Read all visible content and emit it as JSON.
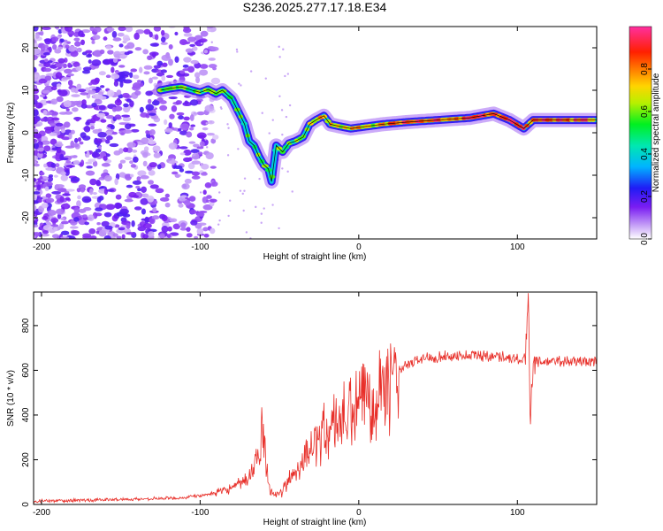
{
  "title": "S236.2025.277.17.18.E34",
  "chart_data": [
    {
      "type": "heatmap",
      "name": "spectrogram",
      "xlabel": "Height of straight line (km)",
      "ylabel": "Frequency (Hz)",
      "xlim": [
        -205,
        150
      ],
      "ylim": [
        -25,
        25
      ],
      "xticks": [
        -200,
        -100,
        0,
        100
      ],
      "yticks": [
        -20,
        -10,
        0,
        10,
        20
      ],
      "colorbar": {
        "label": "Normalized spectral amplitude",
        "range": [
          0,
          1
        ],
        "ticks": [
          0.0,
          0.2,
          0.4,
          0.6,
          0.8
        ]
      },
      "ridge": [
        {
          "x": -125,
          "y": 10.0
        },
        {
          "x": -118,
          "y": 10.5
        },
        {
          "x": -112,
          "y": 10.8
        },
        {
          "x": -105,
          "y": 10.0
        },
        {
          "x": -100,
          "y": 9.5
        },
        {
          "x": -95,
          "y": 10.2
        },
        {
          "x": -90,
          "y": 9.2
        },
        {
          "x": -86,
          "y": 10.0
        },
        {
          "x": -80,
          "y": 8.0
        },
        {
          "x": -76,
          "y": 5.0
        },
        {
          "x": -72,
          "y": 2.0
        },
        {
          "x": -69,
          "y": -2.0
        },
        {
          "x": -66,
          "y": -3.0
        },
        {
          "x": -63,
          "y": -5.5
        },
        {
          "x": -60,
          "y": -7.5
        },
        {
          "x": -57,
          "y": -8.5
        },
        {
          "x": -55,
          "y": -11.5
        },
        {
          "x": -52,
          "y": -3.0
        },
        {
          "x": -48,
          "y": -4.5
        },
        {
          "x": -44,
          "y": -2.5
        },
        {
          "x": -40,
          "y": -2.0
        },
        {
          "x": -35,
          "y": -1.0
        },
        {
          "x": -31,
          "y": 2.0
        },
        {
          "x": -27,
          "y": 3.0
        },
        {
          "x": -22,
          "y": 4.0
        },
        {
          "x": -18,
          "y": 2.0
        },
        {
          "x": -12,
          "y": 1.5
        },
        {
          "x": -5,
          "y": 1.0
        },
        {
          "x": 5,
          "y": 1.5
        },
        {
          "x": 15,
          "y": 2.0
        },
        {
          "x": 30,
          "y": 2.5
        },
        {
          "x": 50,
          "y": 3.0
        },
        {
          "x": 70,
          "y": 3.5
        },
        {
          "x": 85,
          "y": 4.5
        },
        {
          "x": 95,
          "y": 3.0
        },
        {
          "x": 104,
          "y": 1.0
        },
        {
          "x": 110,
          "y": 3.0
        },
        {
          "x": 130,
          "y": 3.0
        },
        {
          "x": 150,
          "y": 3.0
        }
      ]
    },
    {
      "type": "line",
      "name": "snr",
      "xlabel": "Height of straight line (km)",
      "ylabel": "SNR (10 * v/v)",
      "xlim": [
        -205,
        150
      ],
      "ylim": [
        0,
        950
      ],
      "xticks": [
        -200,
        -100,
        0,
        100
      ],
      "yticks": [
        0,
        200,
        400,
        600,
        800
      ],
      "color": "#e8302a",
      "series": [
        {
          "x": -205,
          "y": 15
        },
        {
          "x": -150,
          "y": 22
        },
        {
          "x": -110,
          "y": 30
        },
        {
          "x": -95,
          "y": 45
        },
        {
          "x": -85,
          "y": 60
        },
        {
          "x": -78,
          "y": 80
        },
        {
          "x": -70,
          "y": 110
        },
        {
          "x": -65,
          "y": 180
        },
        {
          "x": -62,
          "y": 260
        },
        {
          "x": -61,
          "y": 430
        },
        {
          "x": -59,
          "y": 220
        },
        {
          "x": -56,
          "y": 60
        },
        {
          "x": -50,
          "y": 40
        },
        {
          "x": -40,
          "y": 150
        },
        {
          "x": -30,
          "y": 260
        },
        {
          "x": -20,
          "y": 330
        },
        {
          "x": -10,
          "y": 380
        },
        {
          "x": 0,
          "y": 430
        },
        {
          "x": 10,
          "y": 500
        },
        {
          "x": 20,
          "y": 560
        },
        {
          "x": 30,
          "y": 620
        },
        {
          "x": 40,
          "y": 655
        },
        {
          "x": 60,
          "y": 665
        },
        {
          "x": 90,
          "y": 665
        },
        {
          "x": 105,
          "y": 640
        },
        {
          "x": 107,
          "y": 950
        },
        {
          "x": 108,
          "y": 380
        },
        {
          "x": 110,
          "y": 640
        },
        {
          "x": 130,
          "y": 640
        },
        {
          "x": 150,
          "y": 640
        }
      ]
    }
  ]
}
